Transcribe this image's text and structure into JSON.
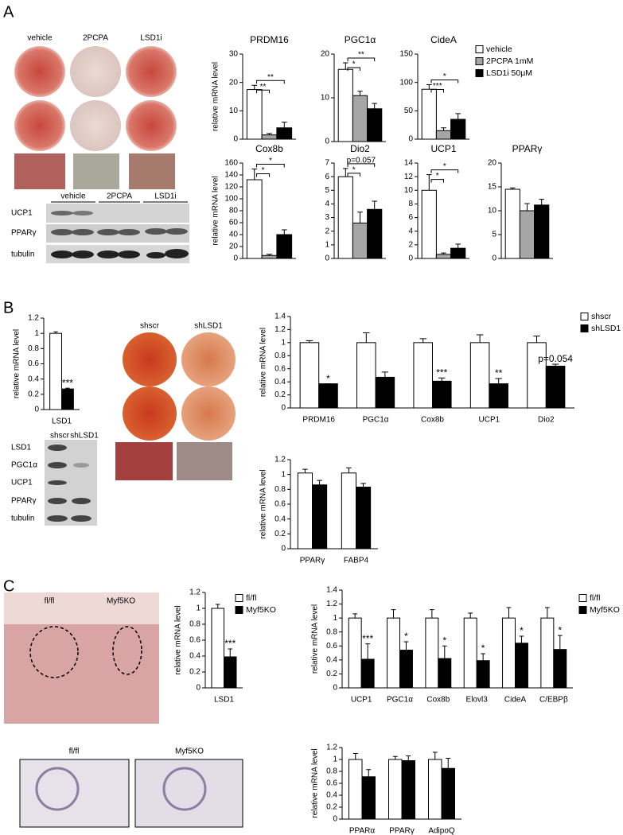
{
  "panel_labels": [
    "A",
    "B",
    "C"
  ],
  "panel_a": {
    "plate_labels": [
      "vehicle",
      "2PCPA",
      "LSD1i"
    ],
    "blot_header": [
      "vehicle",
      "2PCPA",
      "LSD1i"
    ],
    "blot_rows": [
      "UCP1",
      "PPARγ",
      "tubulin"
    ]
  },
  "panel_b": {
    "plate_labels": [
      "shscr",
      "shLSD1"
    ],
    "blot_header": [
      "shscr",
      "shLSD1"
    ],
    "blot_rows": [
      "LSD1",
      "PGC1α",
      "UCP1",
      "PPARγ",
      "tubulin"
    ]
  },
  "panel_c": {
    "tissue_labels": [
      "fl/fl",
      "Myf5KO"
    ],
    "histology_labels": [
      "fl/fl",
      "Myf5KO"
    ]
  },
  "chart_data": [
    {
      "type": "bar",
      "title": "PRDM16",
      "ylabel": "relative mRNA level",
      "categories": [
        null
      ],
      "series": [
        {
          "color": "#ffffff",
          "values": [
            17.5
          ],
          "errors": [
            1.5
          ]
        },
        {
          "color": "#a6a6a6",
          "values": [
            1.5
          ],
          "errors": [
            0.5
          ]
        },
        {
          "color": "#000000",
          "values": [
            4
          ],
          "errors": [
            2
          ]
        }
      ],
      "ylim": [
        0,
        30
      ],
      "yticks": [
        0,
        10,
        20,
        30
      ],
      "brackets": [
        "**",
        "**"
      ]
    },
    {
      "type": "bar",
      "title": "PGC1α",
      "categories": [
        null
      ],
      "series": [
        {
          "color": "#ffffff",
          "values": [
            16.5
          ],
          "errors": [
            1.5
          ]
        },
        {
          "color": "#a6a6a6",
          "values": [
            10.5
          ],
          "errors": [
            1
          ]
        },
        {
          "color": "#000000",
          "values": [
            7.5
          ],
          "errors": [
            1.2
          ]
        }
      ],
      "ylim": [
        0,
        20
      ],
      "yticks": [
        0,
        10,
        20
      ],
      "brackets": [
        "*",
        "**"
      ]
    },
    {
      "type": "bar",
      "title": "CideA",
      "categories": [
        null
      ],
      "series": [
        {
          "name": "vehicle",
          "color": "#ffffff",
          "values": [
            88
          ],
          "errors": [
            8
          ]
        },
        {
          "name": "2PCPA 1mM",
          "color": "#a6a6a6",
          "values": [
            15
          ],
          "errors": [
            5
          ]
        },
        {
          "name": "LSD1i 50μM",
          "color": "#000000",
          "values": [
            35
          ],
          "errors": [
            10
          ]
        }
      ],
      "ylim": [
        0,
        150
      ],
      "yticks": [
        0,
        50,
        100,
        150
      ],
      "brackets": [
        "***",
        "*"
      ]
    },
    {
      "type": "bar",
      "title": "Cox8b",
      "ylabel": "relative mRNA level",
      "categories": [
        null
      ],
      "series": [
        {
          "color": "#ffffff",
          "values": [
            132
          ],
          "errors": [
            18
          ]
        },
        {
          "color": "#a6a6a6",
          "values": [
            5
          ],
          "errors": [
            2
          ]
        },
        {
          "color": "#000000",
          "values": [
            40
          ],
          "errors": [
            8
          ]
        }
      ],
      "ylim": [
        0,
        160
      ],
      "yticks": [
        0,
        20,
        40,
        60,
        80,
        100,
        120,
        140,
        160
      ],
      "brackets": [
        "*",
        "*"
      ]
    },
    {
      "type": "bar",
      "title": "Dio2",
      "categories": [
        null
      ],
      "series": [
        {
          "color": "#ffffff",
          "values": [
            6
          ],
          "errors": [
            0.6
          ]
        },
        {
          "color": "#a6a6a6",
          "values": [
            2.6
          ],
          "errors": [
            0.8
          ]
        },
        {
          "color": "#000000",
          "values": [
            3.6
          ],
          "errors": [
            0.6
          ]
        }
      ],
      "ylim": [
        0,
        7
      ],
      "yticks": [
        0,
        1,
        2,
        3,
        4,
        5,
        6,
        7
      ],
      "brackets": [
        "*",
        "p=0.057"
      ]
    },
    {
      "type": "bar",
      "title": "UCP1",
      "categories": [
        null
      ],
      "series": [
        {
          "color": "#ffffff",
          "values": [
            10
          ],
          "errors": [
            2.3
          ]
        },
        {
          "color": "#a6a6a6",
          "values": [
            0.6
          ],
          "errors": [
            0.2
          ]
        },
        {
          "color": "#000000",
          "values": [
            1.5
          ],
          "errors": [
            0.6
          ]
        }
      ],
      "ylim": [
        0,
        14
      ],
      "yticks": [
        0,
        2,
        4,
        6,
        8,
        10,
        12,
        14
      ],
      "brackets": [
        "*",
        "*"
      ]
    },
    {
      "type": "bar",
      "title": "PPARγ",
      "categories": [
        null
      ],
      "series": [
        {
          "color": "#ffffff",
          "values": [
            14.5
          ],
          "errors": [
            0.3
          ]
        },
        {
          "color": "#a6a6a6",
          "values": [
            10
          ],
          "errors": [
            1.5
          ]
        },
        {
          "color": "#000000",
          "values": [
            11.2
          ],
          "errors": [
            1.2
          ]
        }
      ],
      "ylim": [
        0,
        20
      ],
      "yticks": [
        0,
        5,
        10,
        15,
        20
      ]
    },
    {
      "type": "bar",
      "ylabel": "relative mRNA level",
      "categories": [
        "LSD1"
      ],
      "series": [
        {
          "color": "#ffffff",
          "values": [
            1
          ],
          "errors": [
            0.02
          ]
        },
        {
          "color": "#000000",
          "values": [
            0.27
          ],
          "errors": [
            0.01
          ]
        }
      ],
      "ylim": [
        0,
        1.2
      ],
      "yticks": [
        0,
        0.2,
        0.4,
        0.6,
        0.8,
        1,
        1.2
      ],
      "annotations": [
        "***"
      ]
    },
    {
      "type": "bar",
      "ylabel": "relative mRNA level",
      "categories": [
        "PRDM16",
        "PGC1α",
        "Cox8b",
        "UCP1",
        "Dio2"
      ],
      "series": [
        {
          "name": "shscr",
          "color": "#ffffff",
          "values": [
            1,
            1,
            1,
            1,
            1
          ],
          "errors": [
            0.03,
            0.15,
            0.06,
            0.12,
            0.1
          ]
        },
        {
          "name": "shLSD1",
          "color": "#000000",
          "values": [
            0.37,
            0.47,
            0.41,
            0.37,
            0.64
          ],
          "errors": [
            0,
            0.08,
            0.05,
            0.08,
            0.03
          ]
        }
      ],
      "ylim": [
        0,
        1.4
      ],
      "yticks": [
        0,
        0.2,
        0.4,
        0.6,
        0.8,
        1,
        1.2,
        1.4
      ],
      "annotations": [
        "*",
        null,
        "***",
        "**",
        "p=0.054"
      ]
    },
    {
      "type": "bar",
      "ylabel": "relative mRNA level",
      "categories": [
        "PPARγ",
        "FABP4"
      ],
      "series": [
        {
          "color": "#ffffff",
          "values": [
            1.02,
            1.02
          ],
          "errors": [
            0.05,
            0.07
          ]
        },
        {
          "color": "#000000",
          "values": [
            0.86,
            0.83
          ],
          "errors": [
            0.06,
            0.05
          ]
        }
      ],
      "ylim": [
        0,
        1.2
      ],
      "yticks": [
        0,
        0.2,
        0.4,
        0.6,
        0.8,
        1,
        1.2
      ]
    },
    {
      "type": "bar",
      "ylabel": "relative mRNA level",
      "categories": [
        "LSD1"
      ],
      "series": [
        {
          "name": "fl/fl",
          "color": "#ffffff",
          "values": [
            1
          ],
          "errors": [
            0.05
          ]
        },
        {
          "name": "Myf5KO",
          "color": "#000000",
          "values": [
            0.39
          ],
          "errors": [
            0.1
          ]
        }
      ],
      "ylim": [
        0,
        1.2
      ],
      "yticks": [
        0,
        0.2,
        0.4,
        0.6,
        0.8,
        1,
        1.2
      ],
      "annotations": [
        "***"
      ]
    },
    {
      "type": "bar",
      "ylabel": "relative mRNA level",
      "categories": [
        "UCP1",
        "PGC1α",
        "Cox8b",
        "Elovl3",
        "CideA",
        "C/EBPβ"
      ],
      "series": [
        {
          "name": "fl/fl",
          "color": "#ffffff",
          "values": [
            1,
            1,
            1,
            1,
            1,
            1
          ],
          "errors": [
            0.06,
            0.12,
            0.12,
            0.07,
            0.15,
            0.15
          ]
        },
        {
          "name": "Myf5KO",
          "color": "#000000",
          "values": [
            0.41,
            0.54,
            0.42,
            0.39,
            0.64,
            0.55
          ],
          "errors": [
            0.22,
            0.12,
            0.18,
            0.1,
            0.1,
            0.2
          ]
        }
      ],
      "ylim": [
        0,
        1.4
      ],
      "yticks": [
        0,
        0.2,
        0.4,
        0.6,
        0.8,
        1,
        1.2,
        1.4
      ],
      "annotations": [
        "***",
        "*",
        "*",
        "*",
        "*",
        "*"
      ]
    },
    {
      "type": "bar",
      "ylabel": "relative mRNA level",
      "categories": [
        "PPARα",
        "PPARγ",
        "AdipoQ"
      ],
      "series": [
        {
          "color": "#ffffff",
          "values": [
            1,
            1,
            1
          ],
          "errors": [
            0.1,
            0.05,
            0.12
          ]
        },
        {
          "color": "#000000",
          "values": [
            0.71,
            0.98,
            0.85
          ],
          "errors": [
            0.12,
            0.08,
            0.17
          ]
        }
      ],
      "ylim": [
        0,
        1.2
      ],
      "yticks": [
        0,
        0.2,
        0.4,
        0.6,
        0.8,
        1,
        1.2
      ]
    }
  ]
}
